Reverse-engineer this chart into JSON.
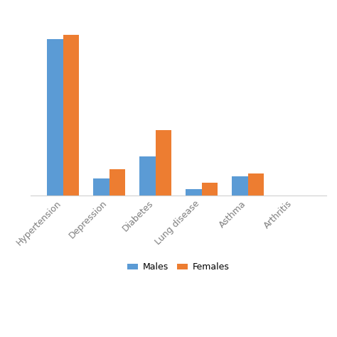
{
  "categories": [
    "Hypertension",
    "Depression",
    "Diabetes",
    "Lung disease",
    "Asthma",
    "Arthritis"
  ],
  "males": [
    72,
    8,
    18,
    3,
    9,
    0
  ],
  "females": [
    74,
    12,
    30,
    6,
    10,
    0
  ],
  "male_color": "#5B9BD5",
  "female_color": "#ED7D31",
  "legend_labels": [
    "Males",
    "Females"
  ],
  "ylim": [
    0,
    85
  ],
  "bar_width": 0.35,
  "background_color": "#ffffff",
  "figsize": [
    4.74,
    4.74
  ],
  "dpi": 100,
  "xlim_left": -0.7,
  "xlim_right": 5.7
}
